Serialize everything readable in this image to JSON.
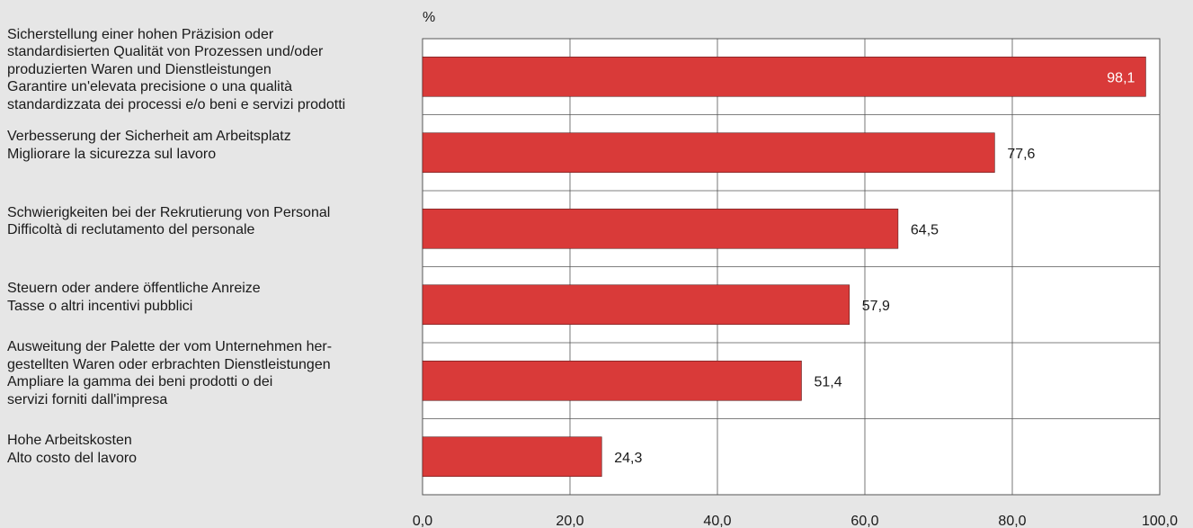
{
  "chart_data": {
    "type": "bar",
    "orientation": "horizontal",
    "unit": "%",
    "categories": [
      "Sicherstellung einer hohen Präzision oder\nstandardisierten Qualität von Prozessen und/oder\nproduzierten Waren und Dienstleistungen\nGarantire un'elevata precisione o una qualità\nstandardizzata dei processi e/o beni e servizi prodotti",
      "Verbesserung der Sicherheit am Arbeitsplatz\nMigliorare la sicurezza sul lavoro",
      "Schwierigkeiten bei der Rekrutierung von Personal\nDifficoltà di reclutamento del personale",
      "Steuern oder andere öffentliche Anreize\nTasse o altri incentivi pubblici",
      "Ausweitung der Palette der vom Unternehmen her-\ngestellten Waren oder erbrachten Dienstleistungen\nAmpliare la gamma dei beni prodotti o dei\nservizi forniti dall'impresa",
      "Hohe Arbeitskosten\nAlto costo del lavoro"
    ],
    "values": [
      98.1,
      77.6,
      64.5,
      57.9,
      51.4,
      24.3
    ],
    "value_labels": [
      "98,1",
      "77,6",
      "64,5",
      "57,9",
      "51,4",
      "24,3"
    ],
    "xlim": [
      0,
      100
    ],
    "ticks": [
      "0,0",
      "20,0",
      "40,0",
      "60,0",
      "80,0",
      "100,0"
    ],
    "grid": true,
    "bar_color": "#d93a39",
    "background_color": "#e6e6e6",
    "plot_background_color": "#ffffff"
  }
}
